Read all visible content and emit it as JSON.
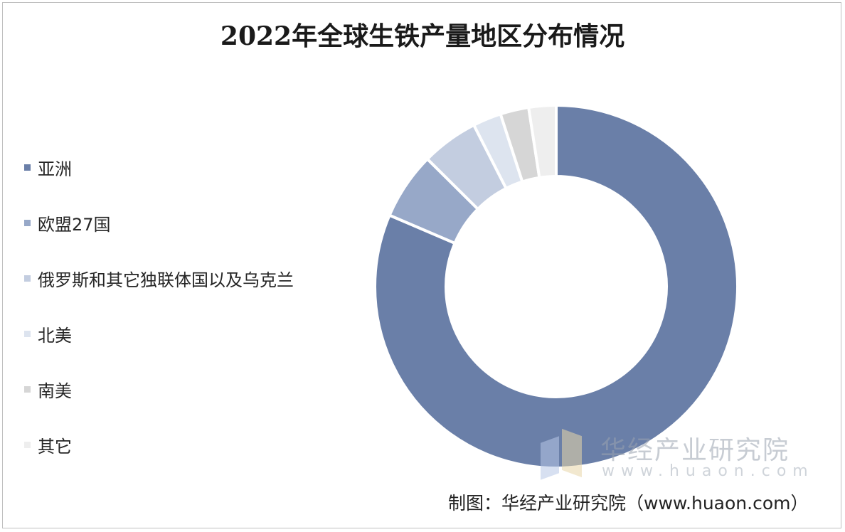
{
  "title": "2022年全球生铁产量地区分布情况",
  "source": "制图：华经产业研究院（www.huaon.com）",
  "watermark": {
    "name": "华经产业研究院",
    "url": "www.huaon.com"
  },
  "colors": {
    "asia": "#6a7fa8",
    "eu27": "#97a8c8",
    "russia_cis_ukraine": "#c3cde0",
    "north_america": "#dde4ef",
    "south_america": "#d6d6d6",
    "other": "#eeeeee"
  },
  "chart_data": {
    "type": "pie",
    "donut": true,
    "title": "2022年全球生铁产量地区分布情况",
    "legend_position": "left",
    "categories": [
      "亚洲",
      "欧盟27国",
      "俄罗斯和其它独联体国以及乌克兰",
      "北美",
      "南美",
      "其它"
    ],
    "values": [
      80.3,
      5.9,
      5.0,
      2.5,
      2.5,
      2.4
    ],
    "unit": "%",
    "colors": [
      "#6a7fa8",
      "#97a8c8",
      "#c3cde0",
      "#dde4ef",
      "#d6d6d6",
      "#eeeeee"
    ]
  }
}
